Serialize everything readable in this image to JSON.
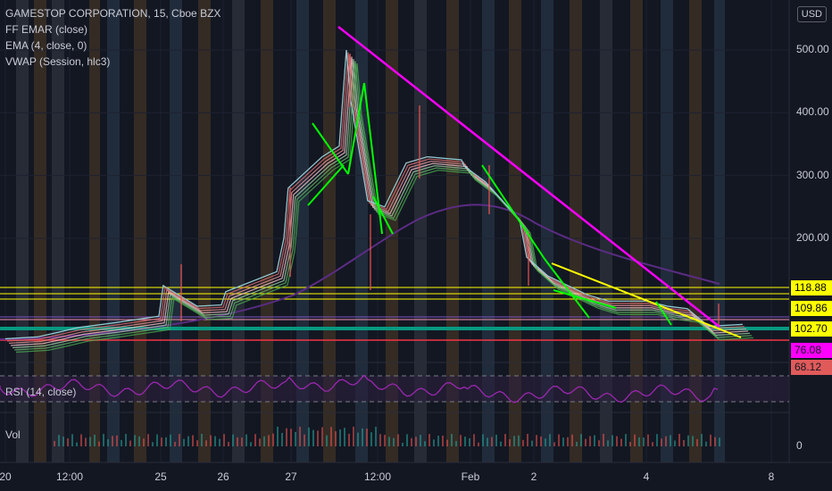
{
  "legend": {
    "title": "GAMESTOP CORPORATION, 15, Cboe BZX",
    "ind1": "FF EMAR (close)",
    "ind2": "EMA (4, close, 0)",
    "ind3": "VWAP (Session, hlc3)"
  },
  "currency": "USD",
  "rsi_label": "RSI (14, close)",
  "vol_label": "Vol",
  "vol_zero": "0",
  "badges": [
    {
      "text": "118.88",
      "bg": "#ffff00",
      "fg": "#000000"
    },
    {
      "text": "109.86",
      "bg": "#ffff00",
      "fg": "#000000"
    },
    {
      "text": "102.70",
      "bg": "#ffff00",
      "fg": "#000000"
    },
    {
      "text": "76.08",
      "bg": "#ff00ff",
      "fg": "#131722"
    },
    {
      "text": "68.12",
      "bg": "#e05a5a",
      "fg": "#131722"
    }
  ],
  "colors": {
    "background": "#131722",
    "trendline": "#ff00ff",
    "yellow_trend": "#ffff00",
    "green_segments": "#00ff00",
    "vwap": "#5b2c84",
    "rsi": "#9c27b0",
    "support_green": "#089981",
    "support_red": "#f23645"
  },
  "chart_data": {
    "type": "line",
    "symbol": "GAMESTOP CORPORATION",
    "interval": "15",
    "exchange": "Cboe BZX",
    "y_ticks": [
      500,
      400,
      300,
      200
    ],
    "y_tick_labels": [
      "500.00",
      "400.00",
      "300.00",
      "200.00"
    ],
    "x_tick_labels": [
      "20",
      "12:00",
      "25",
      "26",
      "27",
      "12:00",
      "Feb",
      "2",
      "4",
      "8"
    ],
    "x_tick_labels_dates": [
      "Jan 20",
      "Jan 22 12:00",
      "Jan 25",
      "Jan 26",
      "Jan 27",
      "Jan 28 12:00",
      "Feb 1",
      "Feb 2",
      "Feb 4",
      "Feb 8"
    ],
    "horizontal_levels": [
      118.88,
      109.86,
      102.7
    ],
    "price_series": {
      "name": "",
      "points": [
        [
          "Jan 20",
          40
        ],
        [
          "Jan 21",
          43
        ],
        [
          "Jan 22",
          50
        ],
        [
          "Jan 22 12:00",
          58
        ],
        [
          "Jan 22 16:00",
          65
        ],
        [
          "Jan 25",
          76
        ],
        [
          "Jan 25 10:00",
          125
        ],
        [
          "Jan 25 14:00",
          92
        ],
        [
          "Jan 26",
          94
        ],
        [
          "Jan 26 10:00",
          115
        ],
        [
          "Jan 26 16:00",
          147
        ],
        [
          "Jan 27",
          200
        ],
        [
          "Jan 27 10:00",
          280
        ],
        [
          "Jan 27 14:00",
          330
        ],
        [
          "Jan 27 16:00",
          347
        ],
        [
          "Jan 28",
          500
        ],
        [
          "Jan 28 10:00",
          420
        ],
        [
          "Jan 28 12:00",
          260
        ],
        [
          "Jan 28 14:00",
          250
        ],
        [
          "Jan 29",
          320
        ],
        [
          "Jan 29 12:00",
          330
        ],
        [
          "Jan 29 16:00",
          325
        ],
        [
          "Feb 1",
          315
        ],
        [
          "Feb 1 12:00",
          290
        ],
        [
          "Feb 1 16:00",
          230
        ],
        [
          "Feb 2",
          170
        ],
        [
          "Feb 2 12:00",
          140
        ],
        [
          "Feb 3",
          110
        ],
        [
          "Feb 3 12:00",
          100
        ],
        [
          "Feb 4",
          100
        ],
        [
          "Feb 4 12:00",
          92
        ],
        [
          "Feb 5",
          88
        ],
        [
          "Feb 5 12:00",
          60
        ],
        [
          "Feb 5 16:00",
          63
        ]
      ]
    },
    "rsi": {
      "name": "RSI (14, close)",
      "upper": 70,
      "lower": 30
    }
  }
}
